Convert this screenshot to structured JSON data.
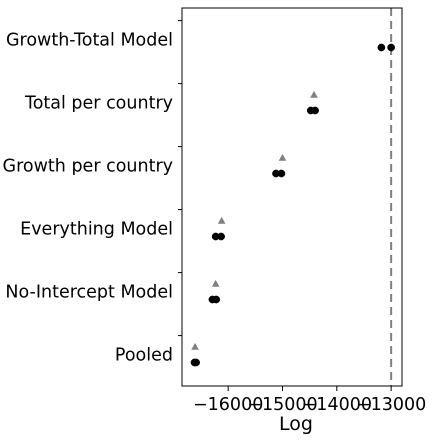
{
  "chart_data": {
    "type": "scatter",
    "title": "",
    "xlabel": "Log",
    "ylabel": "",
    "categories": [
      "Growth-Total Model",
      "Total per country",
      "Growth per country",
      "Everything Model",
      "No-Intercept Model",
      "Pooled"
    ],
    "xlim": [
      -16850,
      -12800
    ],
    "xticks": [
      -16000,
      -15000,
      -14000,
      -13000
    ],
    "xtick_labels": [
      "−16000",
      "−15000",
      "−14000",
      "−13000"
    ],
    "reference_line_x": -13000,
    "grid": false,
    "series": [
      {
        "marker": "circle",
        "color": "#000000",
        "points": [
          {
            "category": "Growth-Total Model",
            "x": -13180
          },
          {
            "category": "Growth-Total Model",
            "x": -13000
          },
          {
            "category": "Total per country",
            "x": -14480
          },
          {
            "category": "Total per country",
            "x": -14400
          },
          {
            "category": "Growth per country",
            "x": -15120
          },
          {
            "category": "Growth per country",
            "x": -15020
          },
          {
            "category": "Everything Model",
            "x": -16230
          },
          {
            "category": "Everything Model",
            "x": -16130
          },
          {
            "category": "No-Intercept Model",
            "x": -16290
          },
          {
            "category": "No-Intercept Model",
            "x": -16220
          },
          {
            "category": "Pooled",
            "x": -16620
          },
          {
            "category": "Pooled",
            "x": -16590
          }
        ]
      },
      {
        "marker": "triangle",
        "color": "#808080",
        "points": [
          {
            "category": "Total per country",
            "x": -14420
          },
          {
            "category": "Growth per country",
            "x": -15000
          },
          {
            "category": "Everything Model",
            "x": -16120
          },
          {
            "category": "No-Intercept Model",
            "x": -16230
          },
          {
            "category": "Pooled",
            "x": -16610
          }
        ]
      }
    ]
  }
}
